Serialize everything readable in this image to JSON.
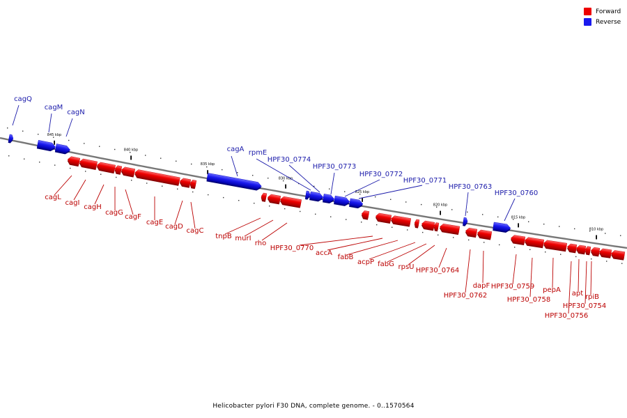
{
  "legend": {
    "forward": {
      "label": "Forward",
      "color": "#ee0000"
    },
    "reverse": {
      "label": "Reverse",
      "color": "#1a1aee"
    }
  },
  "caption": "Helicobacter pylori F30 DNA, complete genome. - 0..1570564",
  "ticks": [
    {
      "label": "845 kbp"
    },
    {
      "label": "840 kbp"
    },
    {
      "label": "835 kbp"
    },
    {
      "label": "830 kbp"
    },
    {
      "label": "825 kbp"
    },
    {
      "label": "820 kbp"
    },
    {
      "label": "815 kbp"
    },
    {
      "label": "810 kbp"
    }
  ],
  "genes_reverse": [
    {
      "label": "cagQ"
    },
    {
      "label": "cagM"
    },
    {
      "label": "cagN"
    },
    {
      "label": "cagA"
    },
    {
      "label": "rpmE"
    },
    {
      "label": "HPF30_0774"
    },
    {
      "label": "HPF30_0773"
    },
    {
      "label": "HPF30_0772"
    },
    {
      "label": "HPF30_0771"
    },
    {
      "label": "HPF30_0763"
    },
    {
      "label": "HPF30_0760"
    }
  ],
  "genes_forward": [
    {
      "label": "cagL"
    },
    {
      "label": "cagI"
    },
    {
      "label": "cagH"
    },
    {
      "label": "cagG"
    },
    {
      "label": "cagF"
    },
    {
      "label": "cagE"
    },
    {
      "label": "cagD"
    },
    {
      "label": "cagC"
    },
    {
      "label": "tnpB"
    },
    {
      "label": "murI"
    },
    {
      "label": "rho"
    },
    {
      "label": "HPF30_0770"
    },
    {
      "label": "accA"
    },
    {
      "label": "fabB"
    },
    {
      "label": "acpP"
    },
    {
      "label": "fabG"
    },
    {
      "label": "rpsU"
    },
    {
      "label": "HPF30_0764"
    },
    {
      "label": "HPF30_0762"
    },
    {
      "label": "dapF"
    },
    {
      "label": "HPF30_0759"
    },
    {
      "label": "HPF30_0758"
    },
    {
      "label": "pepA"
    },
    {
      "label": "apt"
    },
    {
      "label": "rpiB"
    },
    {
      "label": "HPF30_0754"
    },
    {
      "label": "HPF30_0756"
    }
  ]
}
